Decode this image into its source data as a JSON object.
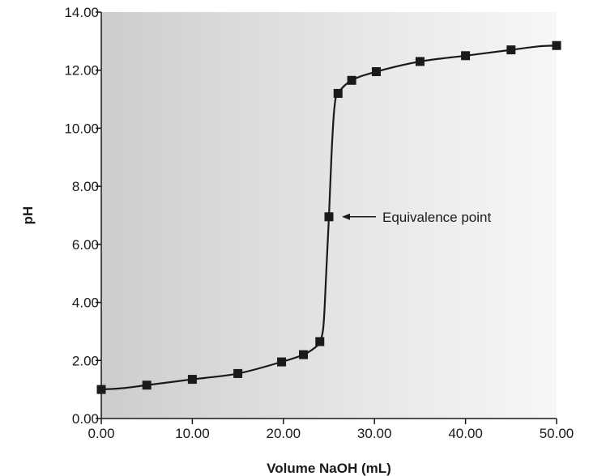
{
  "chart_data": {
    "type": "scatter",
    "title": "",
    "xlabel": "Volume NaOH (mL)",
    "ylabel": "pH",
    "xlim": [
      0,
      50
    ],
    "ylim": [
      0,
      14
    ],
    "x_ticks": [
      0,
      10,
      20,
      30,
      40,
      50
    ],
    "x_tick_labels": [
      "0.00",
      "10.00",
      "20.00",
      "30.00",
      "40.00",
      "50.00"
    ],
    "y_ticks": [
      0,
      2,
      4,
      6,
      8,
      10,
      12,
      14
    ],
    "y_tick_labels": [
      "0.00",
      "2.00",
      "4.00",
      "6.00",
      "8.00",
      "10.00",
      "12.00",
      "14.00"
    ],
    "grid": false,
    "background": "gradient-gray-to-white",
    "series": [
      {
        "points": [
          {
            "x": 0.0,
            "y": 1.0
          },
          {
            "x": 5.0,
            "y": 1.15
          },
          {
            "x": 10.0,
            "y": 1.35
          },
          {
            "x": 15.0,
            "y": 1.55
          },
          {
            "x": 19.8,
            "y": 1.95
          },
          {
            "x": 22.2,
            "y": 2.2
          },
          {
            "x": 24.0,
            "y": 2.65
          },
          {
            "x": 25.0,
            "y": 6.95
          },
          {
            "x": 26.0,
            "y": 11.2
          },
          {
            "x": 27.5,
            "y": 11.65
          },
          {
            "x": 30.2,
            "y": 11.95
          },
          {
            "x": 35.0,
            "y": 12.3
          },
          {
            "x": 40.0,
            "y": 12.5
          },
          {
            "x": 45.0,
            "y": 12.7
          },
          {
            "x": 50.0,
            "y": 12.85
          }
        ],
        "curve": [
          {
            "x": 0.0,
            "y": 1.0
          },
          {
            "x": 2.5,
            "y": 1.05
          },
          {
            "x": 5.0,
            "y": 1.15
          },
          {
            "x": 10.0,
            "y": 1.35
          },
          {
            "x": 15.0,
            "y": 1.55
          },
          {
            "x": 19.8,
            "y": 1.95
          },
          {
            "x": 22.2,
            "y": 2.2
          },
          {
            "x": 23.5,
            "y": 2.45
          },
          {
            "x": 24.0,
            "y": 2.65
          },
          {
            "x": 24.4,
            "y": 3.2
          },
          {
            "x": 24.7,
            "y": 5.0
          },
          {
            "x": 25.0,
            "y": 6.95
          },
          {
            "x": 25.3,
            "y": 9.2
          },
          {
            "x": 25.6,
            "y": 10.7
          },
          {
            "x": 26.0,
            "y": 11.2
          },
          {
            "x": 27.5,
            "y": 11.65
          },
          {
            "x": 30.2,
            "y": 11.95
          },
          {
            "x": 35.0,
            "y": 12.3
          },
          {
            "x": 40.0,
            "y": 12.5
          },
          {
            "x": 45.0,
            "y": 12.7
          },
          {
            "x": 48.0,
            "y": 12.82
          },
          {
            "x": 50.0,
            "y": 12.85
          }
        ],
        "color": "#1a1a1a"
      }
    ],
    "annotations": [
      {
        "text": "Equivalence point",
        "x": 25.0,
        "y": 6.95
      }
    ]
  }
}
